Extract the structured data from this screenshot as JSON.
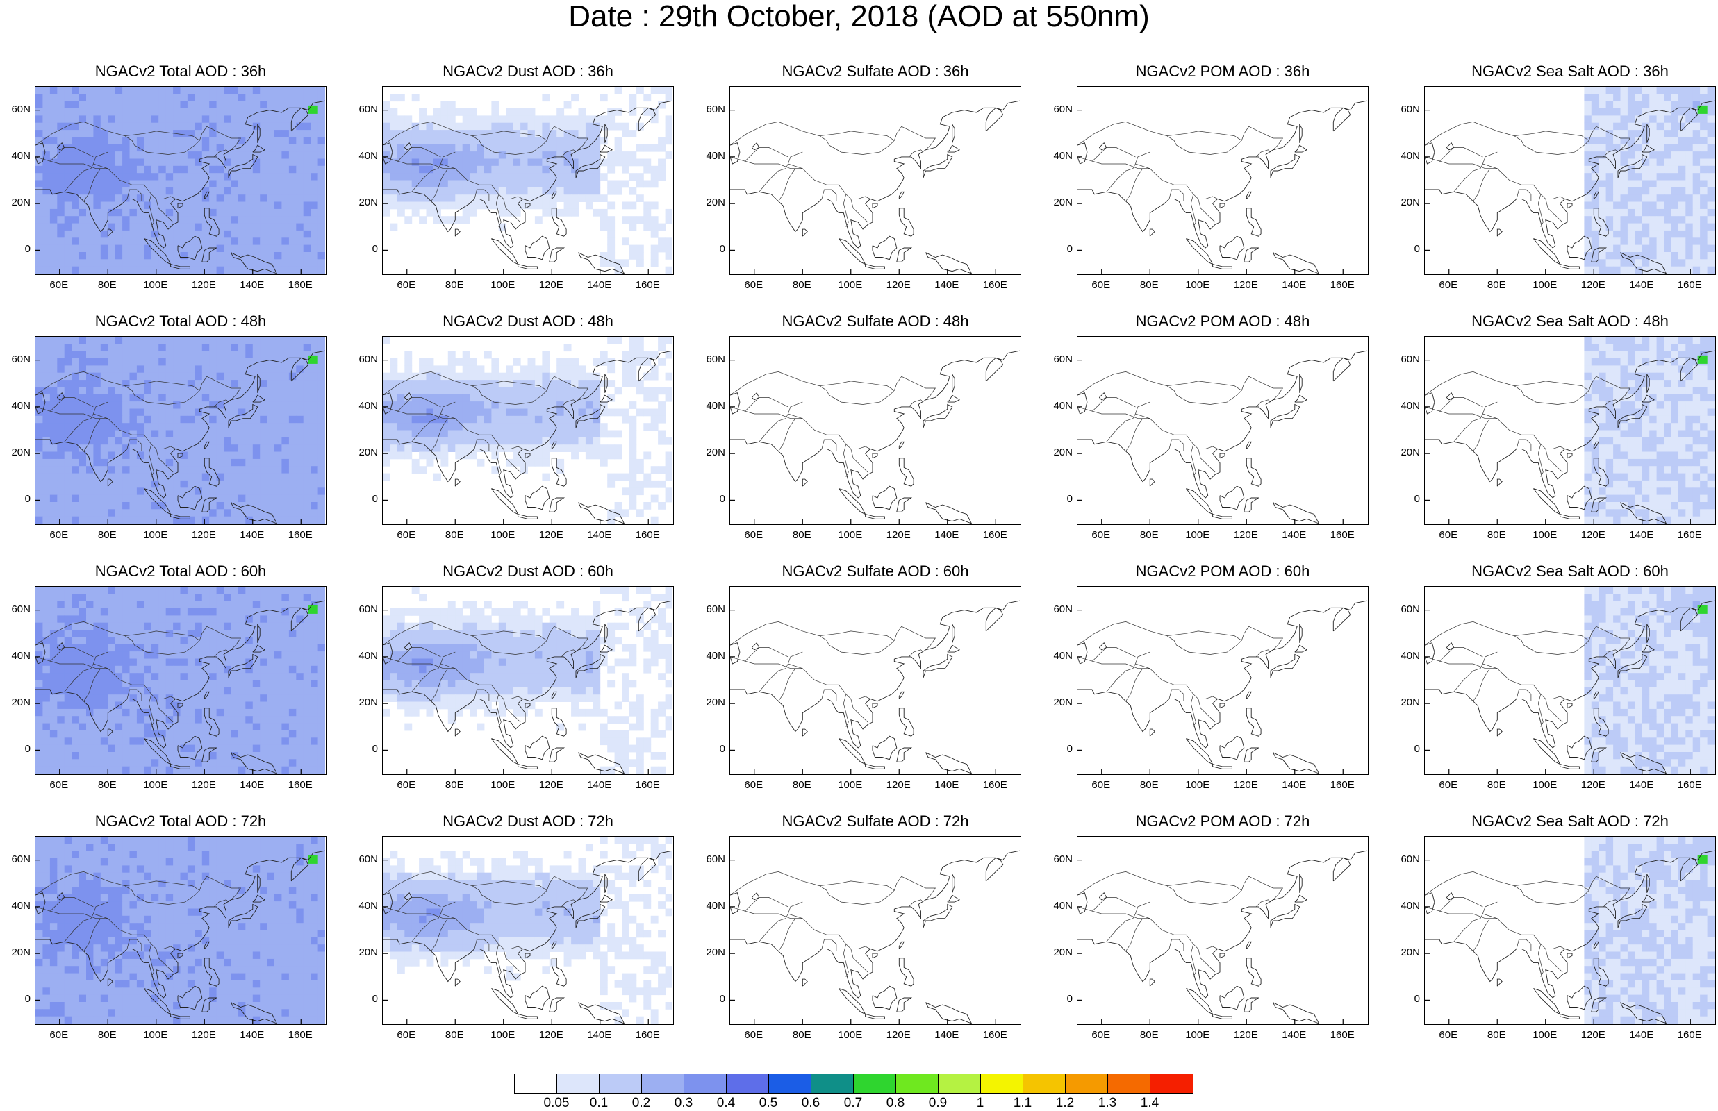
{
  "title": "Date : 29th October, 2018 (AOD at 550nm)",
  "lat_ticks": [
    "60N",
    "40N",
    "20N",
    "0"
  ],
  "lon_ticks": [
    "60E",
    "80E",
    "100E",
    "120E",
    "140E",
    "160E"
  ],
  "rows": [
    "36h",
    "48h",
    "60h",
    "72h"
  ],
  "panels": [
    [
      "NGACv2 Total AOD : 36h",
      "NGACv2 Dust AOD : 36h",
      "NGACv2 Sulfate AOD : 36h",
      "NGACv2 POM AOD : 36h",
      "NGACv2 Sea Salt AOD : 36h"
    ],
    [
      "NGACv2 Total AOD : 48h",
      "NGACv2 Dust AOD : 48h",
      "NGACv2 Sulfate AOD : 48h",
      "NGACv2 POM AOD : 48h",
      "NGACv2 Sea Salt AOD : 48h"
    ],
    [
      "NGACv2 Total AOD : 60h",
      "NGACv2 Dust AOD : 60h",
      "NGACv2 Sulfate AOD : 60h",
      "NGACv2 POM AOD : 60h",
      "NGACv2 Sea Salt AOD : 60h"
    ],
    [
      "NGACv2 Total AOD : 72h",
      "NGACv2 Dust AOD : 72h",
      "NGACv2 Sulfate AOD : 72h",
      "NGACv2 POM AOD : 72h",
      "NGACv2 Sea Salt  AOD : 72h"
    ]
  ],
  "colorbar": {
    "labels": [
      "0.05",
      "0.1",
      "0.2",
      "0.3",
      "0.4",
      "0.5",
      "0.6",
      "0.7",
      "0.8",
      "0.9",
      "1",
      "1.1",
      "1.2",
      "1.3",
      "1.4"
    ],
    "colors": [
      "#ffffff",
      "#dde6fb",
      "#bccbf7",
      "#9caff2",
      "#7d92ee",
      "#5e6ee9",
      "#1b5de6",
      "#0f8f88",
      "#2fd52f",
      "#6fe81f",
      "#b5f242",
      "#f4f400",
      "#f5c400",
      "#f59a00",
      "#f56a00",
      "#f51f00"
    ]
  },
  "fields": {
    "total": {
      "level": 0.25,
      "hotspot": "#2fd52f"
    },
    "dust": {
      "level": 0.2
    },
    "sulfate": {
      "level": 0.08
    },
    "pom": {
      "level": 0.03
    },
    "seasalt": {
      "level": 0.15,
      "hotspot": "#2fd52f"
    }
  }
}
